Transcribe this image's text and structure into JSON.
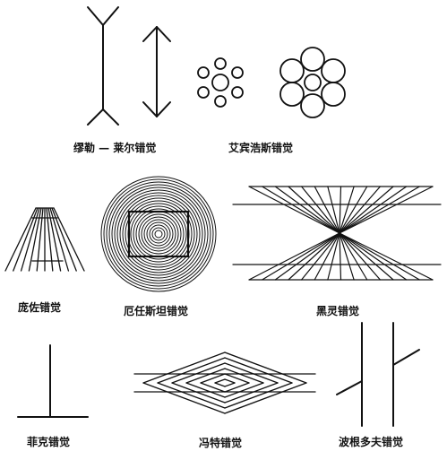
{
  "captions": {
    "muller_lyer": "缪勒 — 莱尔错觉",
    "ebbinghaus": "艾宾浩斯错觉",
    "ponzo": "庞佐错觉",
    "orbison": "厄任斯坦错觉",
    "hering": "黑灵错觉",
    "fick": "菲克错觉",
    "wundt": "冯特错觉",
    "poggendorff": "波根多夫错觉"
  },
  "colors": {
    "ink": "#111111",
    "background": "#ffffff"
  }
}
